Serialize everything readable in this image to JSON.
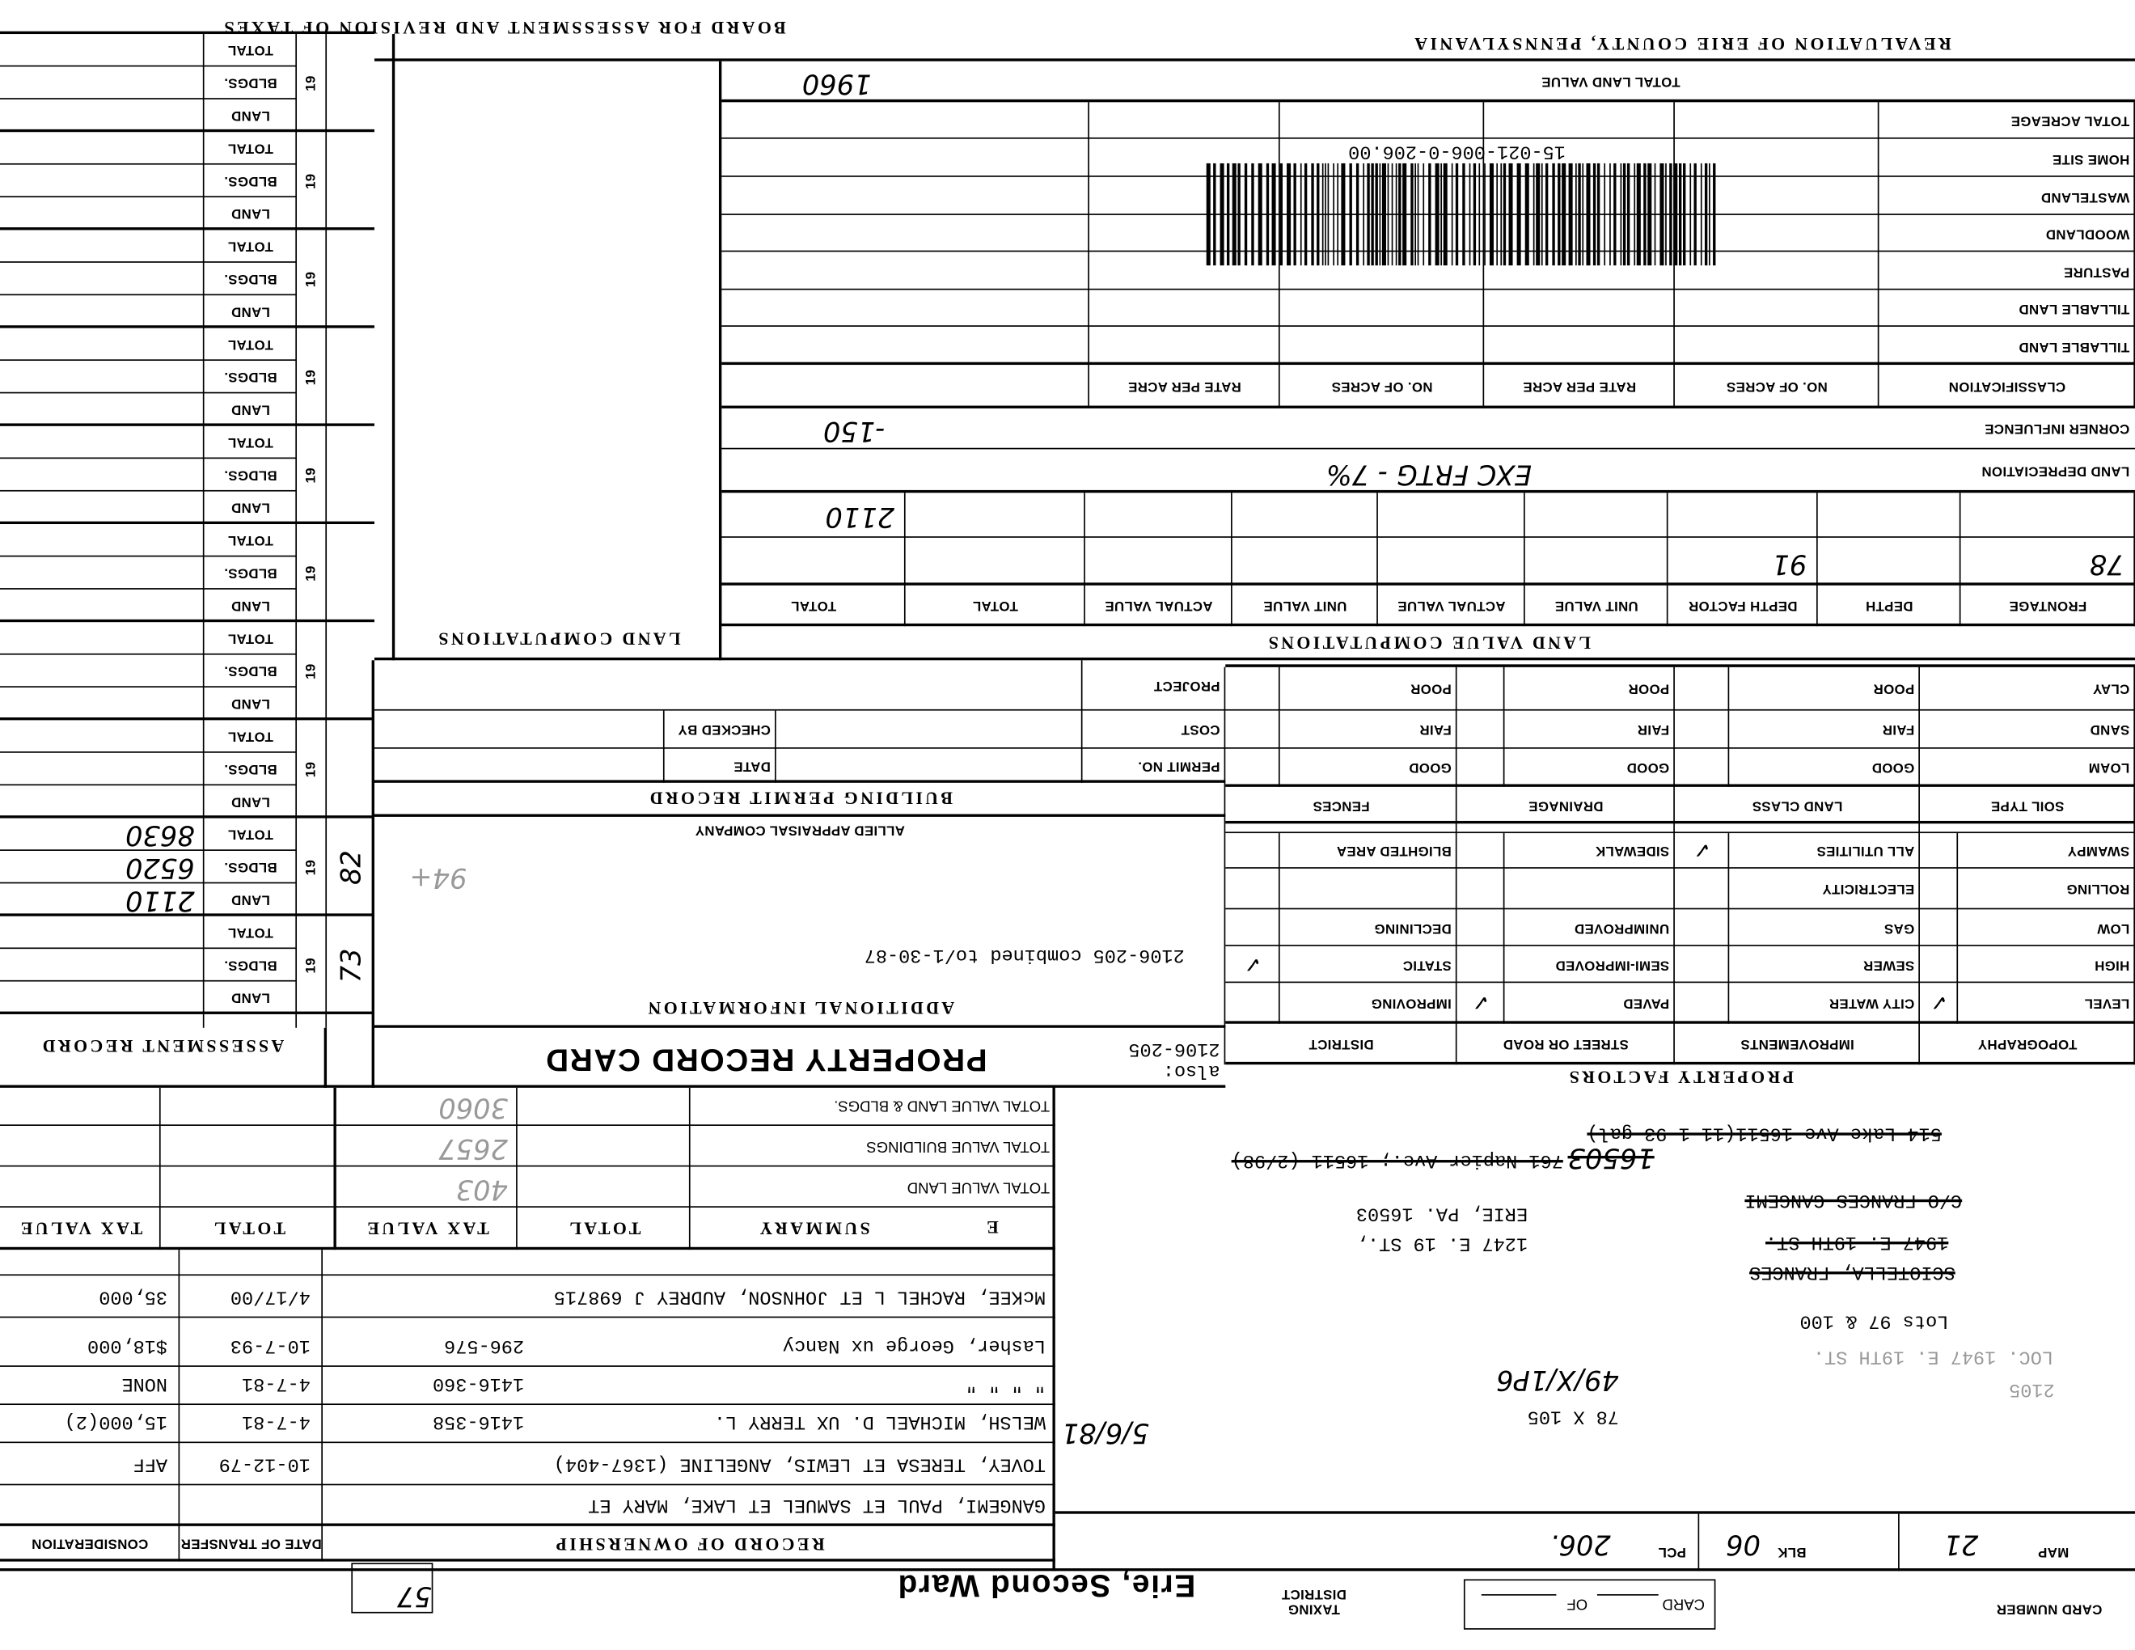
{
  "header": {
    "revaluation": "REVALUATION OF ERIE COUNTY, PENNSYLVANIA",
    "board": "BOARD FOR ASSESSMENT AND REVISION OF TAXES"
  },
  "card": {
    "card_number_label": "CARD NUMBER",
    "card_label": "CARD",
    "of_label": "OF",
    "taxing_district_label": "TAXING DISTRICT",
    "taxing_district": "Erie, Second Ward",
    "box_number": "57"
  },
  "parcel": {
    "map_label": "MAP",
    "map": "21",
    "blk_label": "BLK",
    "blk": "06",
    "pcl_label": "PCL",
    "pcl": "206."
  },
  "legal": {
    "lines": [
      {
        "text": "2105",
        "style": "faint"
      },
      {
        "text": "LOC.  1947 E. 19TH ST.",
        "style": "faint"
      },
      {
        "text": "Lots 97 & 100",
        "style": "normal"
      },
      {
        "text": "SCIOTELLA, FRANCES",
        "style": "strike"
      },
      {
        "text": "1947 E. 19TH ST.",
        "style": "strike"
      },
      {
        "text": "C/O FRANCES GANGEMI",
        "style": "strike"
      },
      {
        "text": "1247 E. 19 ST.,",
        "style": "normal"
      },
      {
        "text": "ERIE, PA.   16503",
        "style": "normal"
      },
      {
        "text": "16503",
        "style": "hand-strike"
      },
      {
        "text": "761 Napier Ave.; 16511 (2/98)",
        "style": "strike"
      },
      {
        "text": "514 Lake Ave   16511(11-1-93 gal)",
        "style": "strike"
      },
      {
        "text": "78 X 105",
        "style": "normal"
      },
      {
        "text": "49/X/1P6",
        "style": "hand"
      },
      {
        "text": "5/6/81",
        "style": "hand"
      }
    ]
  },
  "ownership": {
    "title": "RECORD OF OWNERSHIP",
    "date_of_transfer_label": "DATE OF TRANSFER",
    "consideration_label": "CONSIDERATION",
    "rows": [
      {
        "name": "GANGEMI, PAUL ET SAMUEL ET LAKE, MARY ET",
        "book": "",
        "date": "",
        "consideration": ""
      },
      {
        "name": "TOVEY, TERESA ET LEWIS, ANGELINE (1367-404)",
        "book": "",
        "date": "10-12-79",
        "consideration": "AFF"
      },
      {
        "name": "WELSH, MICHAEL D. UX TERRY L.",
        "book": "1416-358",
        "date": "4-7-81",
        "consideration": "15,000(2)"
      },
      {
        "name": "\"     \"     \"     \"",
        "book": "1416-360",
        "date": "4-7-81",
        "consideration": "NONE"
      },
      {
        "name": "Lasher, George ux Nancy",
        "book": "296-576",
        "date": "10-7-93",
        "consideration": "$18,000"
      },
      {
        "name": "McKEE, RACHEL L ET JOHNSON, AUDREY J 698715",
        "book": "",
        "date": "4/17/00",
        "consideration": "35,000"
      }
    ]
  },
  "summary": {
    "letter": "E",
    "title": "SUMMARY",
    "columns": [
      "TOTAL",
      "TAX VALUE",
      "TOTAL",
      "TAX VALUE"
    ],
    "rows": [
      {
        "label": "TOTAL VALUE LAND",
        "tax_value": "403"
      },
      {
        "label": "TOTAL VALUE BUILDINGS",
        "tax_value": "2657"
      },
      {
        "label": "TOTAL VALUE LAND & BLDGS.",
        "tax_value": "3060"
      }
    ]
  },
  "title_bar": {
    "also_label": "also:",
    "also": "2106-205",
    "title": "PROPERTY RECORD CARD",
    "assessment_record": "ASSESSMENT RECORD"
  },
  "property_factors": {
    "title": "PROPERTY FACTORS",
    "headers": [
      "TOPOGRAPHY",
      "IMPROVEMENTS",
      "STREET OR ROAD",
      "DISTRICT"
    ],
    "rows": [
      [
        "LEVEL",
        "CITY WATER",
        "PAVED",
        "IMPROVING"
      ],
      [
        "HIGH",
        "SEWER",
        "SEMI-IMPROVED",
        "STATIC"
      ],
      [
        "LOW",
        "GAS",
        "UNIMPROVED",
        "DECLINING"
      ],
      [
        "ROLLING",
        "ELECTRICITY",
        "",
        ""
      ],
      [
        "SWAMPY",
        "ALL UTILITIES",
        "SIDEWALK",
        "BLIGHTED AREA"
      ]
    ],
    "checked": [
      "LEVEL",
      "ALL UTILITIES",
      "PAVED",
      "STATIC"
    ],
    "soil_headers": [
      "SOIL TYPE",
      "LAND CLASS",
      "DRAINAGE",
      "FENCES"
    ],
    "soil_rows": [
      [
        "LOAM",
        "GOOD",
        "GOOD",
        "GOOD"
      ],
      [
        "SAND",
        "FAIR",
        "FAIR",
        "FAIR"
      ],
      [
        "CLAY",
        "POOR",
        "POOR",
        "POOR"
      ]
    ],
    "check_glyph": "✓"
  },
  "additional": {
    "title": "ADDITIONAL INFORMATION",
    "note": "2106-205 combined to/1-30-87",
    "appraiser": "ALLIED APPRAISAL COMPANY",
    "mark": "94+"
  },
  "permit": {
    "title": "BUILDING PERMIT RECORD",
    "labels": [
      "PERMIT NO.",
      "COST",
      "PROJECT"
    ],
    "labels2": [
      "DATE",
      "CHECKED BY"
    ]
  },
  "land_computations_label": "LAND COMPUTATIONS",
  "land_value": {
    "title": "LAND VALUE COMPUTATIONS",
    "columns": [
      "FRONTAGE",
      "DEPTH",
      "DEPTH FACTOR",
      "UNIT VALUE",
      "ACTUAL VALUE",
      "UNIT VALUE",
      "ACTUAL VALUE",
      "TOTAL",
      "TOTAL"
    ],
    "rows": [
      [
        "78",
        "",
        "91",
        "",
        "",
        "",
        "",
        "",
        ""
      ],
      [
        "",
        "",
        "",
        "",
        "",
        "",
        "",
        "",
        "2110"
      ]
    ],
    "depreciation_label": "LAND DEPRECIATION",
    "depreciation_note": "EXC FRTG - 7%",
    "corner_label": "CORNER INFLUENCE",
    "corner_value": "-150"
  },
  "acreage": {
    "columns": [
      "CLASSIFICATION",
      "NO. OF ACRES",
      "RATE PER ACRE",
      "NO. OF ACRES",
      "RATE PER ACRE"
    ],
    "rows": [
      "TILLABLE LAND",
      "TILLABLE LAND",
      "PASTURE",
      "WOODLAND",
      "WASTELAND",
      "HOME SITE",
      "TOTAL ACREAGE"
    ]
  },
  "barcode": "15-021-006-0-206.00",
  "total_land_value": {
    "label": "TOTAL LAND VALUE",
    "value": "1960"
  },
  "assessment": {
    "row_labels": [
      "LAND",
      "BLDGS.",
      "TOTAL"
    ],
    "groups": [
      {
        "prefix": "19",
        "year_hand": "73",
        "land": "",
        "bldgs": "",
        "total": ""
      },
      {
        "prefix": "19",
        "year_hand": "82",
        "land": "2110",
        "bldgs": "6520",
        "total": "8630"
      },
      {
        "prefix": "19"
      },
      {
        "prefix": "19"
      },
      {
        "prefix": "19"
      },
      {
        "prefix": "19"
      },
      {
        "prefix": "19"
      },
      {
        "prefix": "19"
      },
      {
        "prefix": "19"
      },
      {
        "prefix": "19"
      }
    ]
  }
}
